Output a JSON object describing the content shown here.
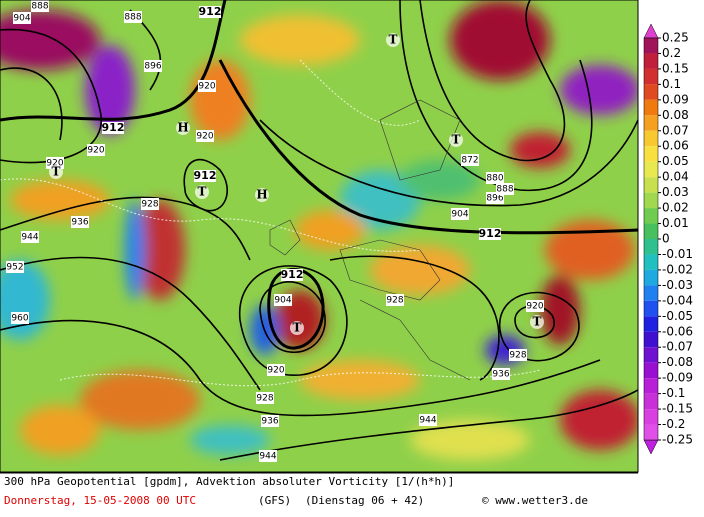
{
  "map": {
    "contour_labels": [
      "904",
      "888",
      "896",
      "888",
      "912",
      "920",
      "920",
      "912",
      "920",
      "920",
      "912",
      "928",
      "936",
      "944",
      "952",
      "960",
      "912",
      "904",
      "896",
      "888",
      "880",
      "872",
      "912",
      "904",
      "920",
      "928",
      "936",
      "944",
      "928",
      "920",
      "928",
      "936",
      "944"
    ],
    "centers": [
      "T",
      "H",
      "T",
      "T",
      "H",
      "T",
      "T",
      "T"
    ]
  },
  "legend": {
    "values": [
      0.25,
      0.2,
      0.15,
      0.1,
      0.09,
      0.08,
      0.07,
      0.06,
      0.05,
      0.04,
      0.03,
      0.02,
      0.01,
      0,
      -0.01,
      -0.02,
      -0.03,
      -0.04,
      -0.05,
      -0.06,
      -0.07,
      -0.08,
      -0.09,
      -0.1,
      -0.15,
      -0.2,
      -0.25
    ]
  },
  "footer": {
    "title": "300 hPa Geopotential [gpdm], Advektion absoluter Vorticity [1/(h*h)]",
    "date": "Donnerstag, 15-05-2008  00 UTC",
    "model": "(GFS)",
    "run": "(Dienstag 06 + 42)",
    "credit": "© www.wetter3.de"
  }
}
